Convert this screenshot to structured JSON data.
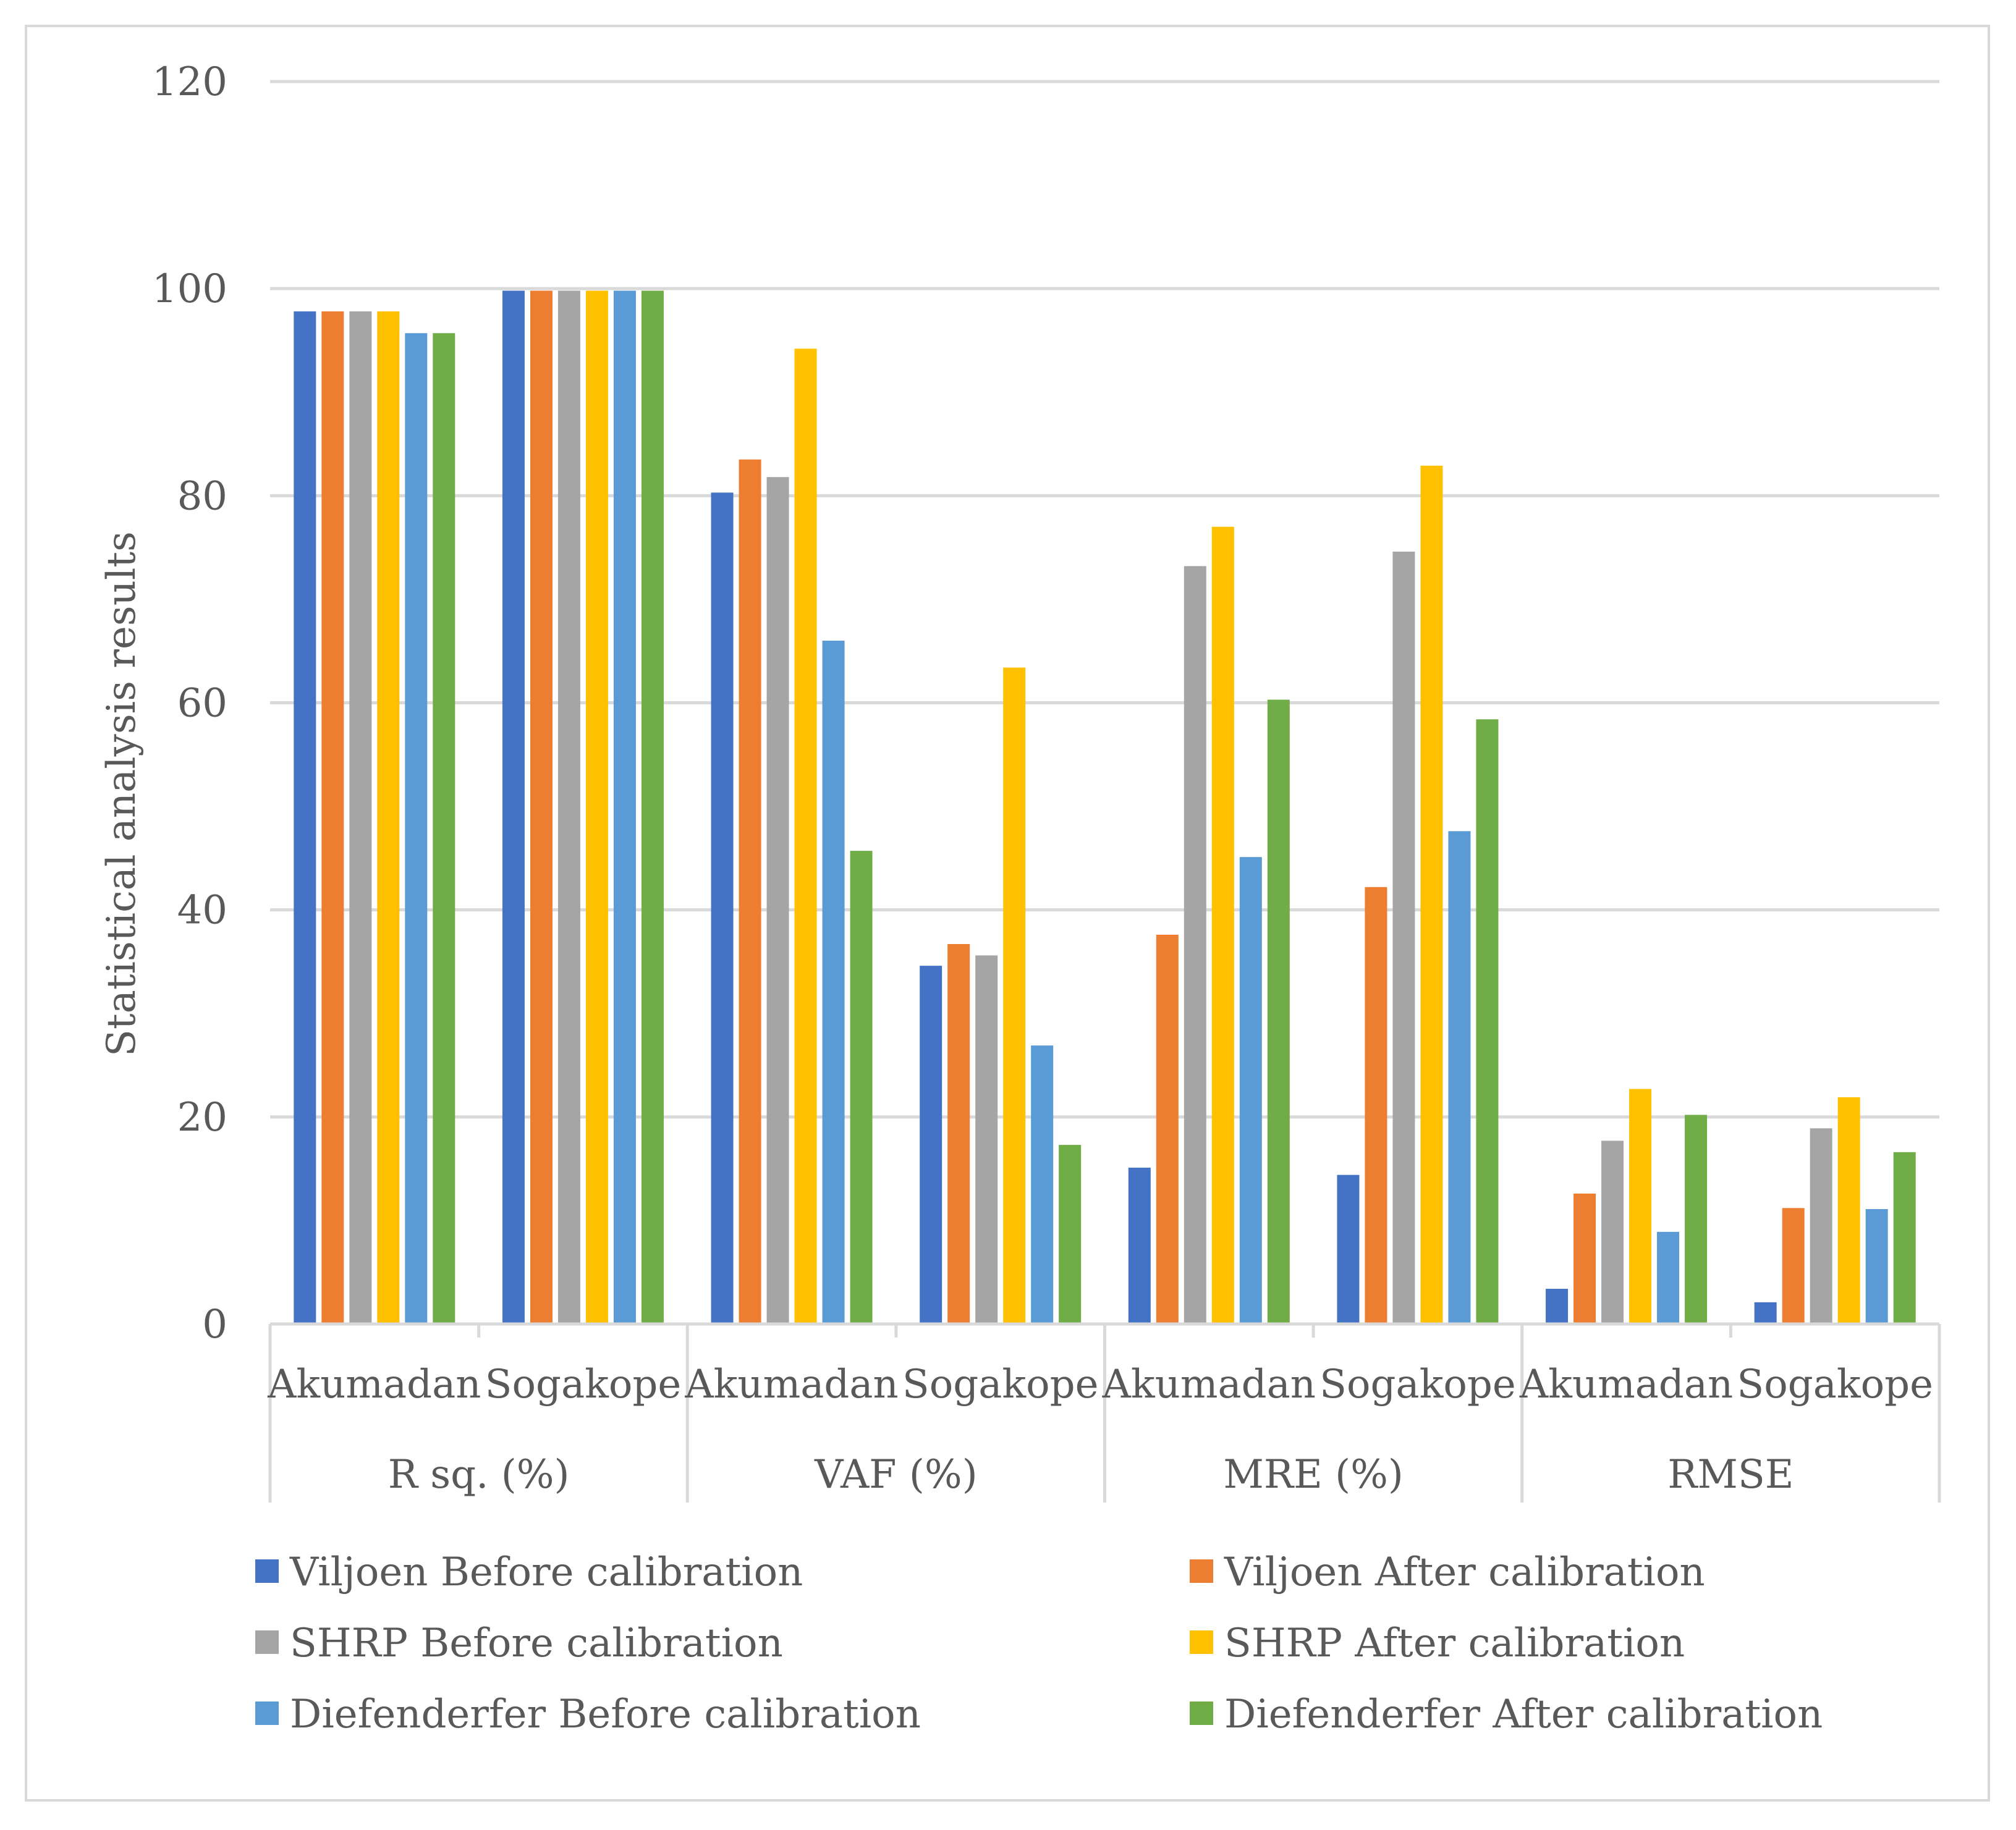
{
  "chart_data": {
    "type": "bar",
    "title": "",
    "xlabel": "",
    "ylabel": "Statistical analysis results",
    "ylim": [
      0,
      120
    ],
    "yticks": [
      0,
      20,
      40,
      60,
      80,
      100,
      120
    ],
    "grid": true,
    "legend_position": "bottom",
    "groups": [
      {
        "label": "R sq. (%)",
        "categories": [
          "Akumadan",
          "Sogakope"
        ]
      },
      {
        "label": "VAF (%)",
        "categories": [
          "Akumadan",
          "Sogakope"
        ]
      },
      {
        "label": "MRE (%)",
        "categories": [
          "Akumadan",
          "Sogakope"
        ]
      },
      {
        "label": "RMSE",
        "categories": [
          "Akumadan",
          "Sogakope"
        ]
      }
    ],
    "categories": [
      "Akumadan",
      "Sogakope",
      "Akumadan",
      "Sogakope",
      "Akumadan",
      "Sogakope",
      "Akumadan",
      "Sogakope"
    ],
    "series": [
      {
        "name": "Viljoen  Before calibration",
        "color": "#4472C4",
        "values": [
          97.8,
          99.8,
          80.3,
          34.6,
          15.1,
          14.4,
          3.4,
          2.1
        ]
      },
      {
        "name": "Viljoen  After calibration",
        "color": "#ED7D31",
        "values": [
          97.8,
          99.8,
          83.5,
          36.7,
          37.6,
          42.2,
          12.6,
          11.2
        ]
      },
      {
        "name": "SHRP Before calibration",
        "color": "#A5A5A5",
        "values": [
          97.8,
          99.8,
          81.8,
          35.6,
          73.2,
          74.6,
          17.7,
          18.9
        ]
      },
      {
        "name": "SHRP After calibration",
        "color": "#FFC000",
        "values": [
          97.8,
          99.8,
          94.2,
          63.4,
          77.0,
          82.9,
          22.7,
          21.9
        ]
      },
      {
        "name": "Diefenderfer  Before calibration",
        "color": "#5B9BD5",
        "values": [
          95.7,
          99.8,
          66.0,
          26.9,
          45.1,
          47.6,
          8.9,
          11.1
        ]
      },
      {
        "name": "Diefenderfer After calibration",
        "color": "#70AD47",
        "values": [
          95.7,
          99.8,
          45.7,
          17.3,
          60.3,
          58.4,
          20.2,
          16.6
        ]
      }
    ]
  }
}
